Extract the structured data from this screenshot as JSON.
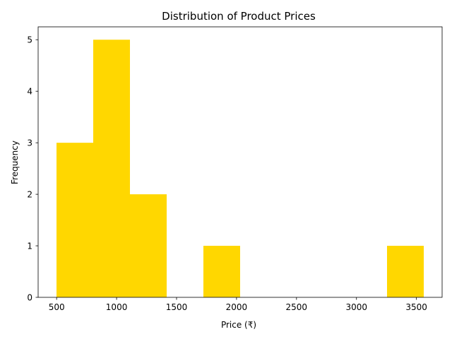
{
  "chart_data": {
    "type": "bar",
    "title": "Distribution of Product Prices",
    "xlabel": "Price (₹)",
    "ylabel": "Frequency",
    "bin_edges": [
      499,
      805.2,
      1111.4,
      1417.6,
      1723.8,
      2030,
      2336.2,
      2642.4,
      2948.6,
      3254.8,
      3561
    ],
    "values": [
      3,
      5,
      2,
      0,
      1,
      0,
      0,
      0,
      0,
      1
    ],
    "xlim": [
      345.9,
      3714.1
    ],
    "ylim": [
      0,
      5.25
    ],
    "xticks": [
      500,
      1000,
      1500,
      2000,
      2500,
      3000,
      3500
    ],
    "yticks": [
      0,
      1,
      2,
      3,
      4,
      5
    ],
    "bar_color": "#ffd700",
    "grid": false,
    "legend": "none"
  }
}
